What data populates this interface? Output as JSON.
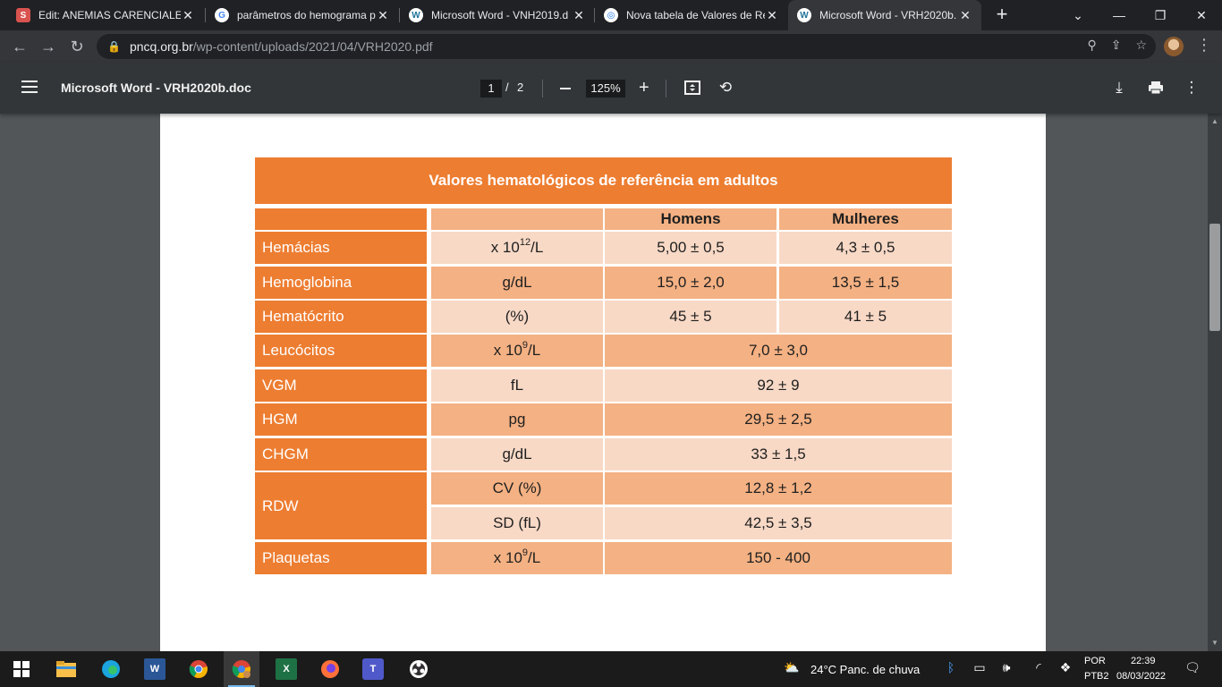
{
  "browser": {
    "tabs": [
      {
        "label": "Edit: ANEMIAS CARENCIALES",
        "favicon": "S",
        "favicon_color": "#d9534f"
      },
      {
        "label": "parâmetros do hemograma p",
        "favicon": "G",
        "favicon_color": "#ffffff"
      },
      {
        "label": "Microsoft Word - VNH2019.d",
        "favicon": "W",
        "favicon_color": "#ffffff"
      },
      {
        "label": "Nova tabela de Valores de Re",
        "favicon": "◎",
        "favicon_color": "#ffffff"
      },
      {
        "label": "Microsoft Word - VRH2020b.",
        "favicon": "W",
        "favicon_color": "#ffffff"
      }
    ],
    "new_tab": "+",
    "url_host": "pncq.org.br",
    "url_path": "/wp-content/uploads/2021/04/VRH2020.pdf"
  },
  "pdf": {
    "title": "Microsoft Word - VRH2020b.doc",
    "page_current": "1",
    "page_sep": "/",
    "page_total": "2",
    "zoom": "125%"
  },
  "table": {
    "title": "Valores hematológicos de referência em adultos",
    "header": {
      "homens": "Homens",
      "mulheres": "Mulheres"
    },
    "rows": [
      {
        "label": "Hemácias",
        "unit_base": "x 10",
        "unit_sup": "12",
        "unit_tail": "/L",
        "homens": "5,00 ± 0,5",
        "mulheres": "4,3 ± 0,5"
      },
      {
        "label": "Hemoglobina",
        "unit": "g/dL",
        "homens": "15,0 ± 2,0",
        "mulheres": "13,5 ± 1,5"
      },
      {
        "label": "Hematócrito",
        "unit": "(%)",
        "homens": "45 ± 5",
        "mulheres": "41 ± 5"
      },
      {
        "label": "Leucócitos",
        "unit_base": "x 10",
        "unit_sup": "9",
        "unit_tail": "/L",
        "value": "7,0 ± 3,0"
      },
      {
        "label": "VGM",
        "unit": "fL",
        "value": "92 ± 9"
      },
      {
        "label": "HGM",
        "unit": "pg",
        "value": "29,5 ± 2,5"
      },
      {
        "label": "CHGM",
        "unit": "g/dL",
        "value": "33 ± 1,5"
      },
      {
        "label": "RDW",
        "sub": [
          {
            "unit": "CV (%)",
            "value": "12,8 ± 1,2"
          },
          {
            "unit": "SD (fL)",
            "value": "42,5 ± 3,5"
          }
        ]
      },
      {
        "label": "Plaquetas",
        "unit_base": "x 10",
        "unit_sup": "9",
        "unit_tail": "/L",
        "value": "150 - 400"
      }
    ]
  },
  "taskbar": {
    "weather": "24°C  Panc. de chuva",
    "lang_top": "POR",
    "lang_bottom": "PTB2",
    "time": "22:39",
    "date": "08/03/2022"
  },
  "colors": {
    "orange": "#ed7d31",
    "peach_dark": "#f4b183",
    "peach_light": "#f8d9c6"
  }
}
